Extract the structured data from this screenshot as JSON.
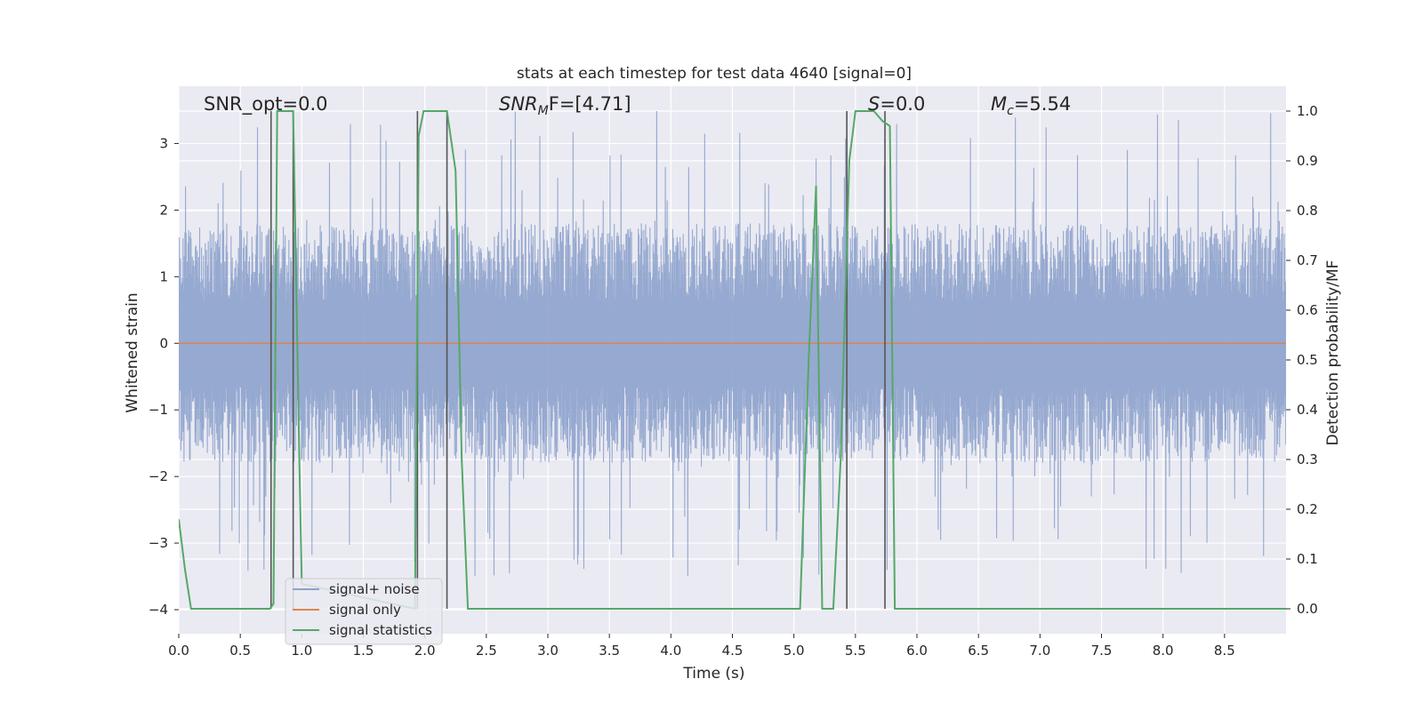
{
  "chart_data": {
    "type": "line",
    "title": "stats at each timestep for test data 4640 [signal=0]",
    "xlabel": "Time (s)",
    "ylabel_left": "Whitened strain",
    "ylabel_right": "Detection probability/MF",
    "xlim": [
      0.0,
      9.0
    ],
    "ylim_left": [
      -4.36,
      3.86
    ],
    "ylim_right": [
      -0.05,
      1.05
    ],
    "x_ticks": [
      "0.0",
      "0.5",
      "1.0",
      "1.5",
      "2.0",
      "2.5",
      "3.0",
      "3.5",
      "4.0",
      "4.5",
      "5.0",
      "5.5",
      "6.0",
      "6.5",
      "7.0",
      "7.5",
      "8.0",
      "8.5"
    ],
    "y_left_ticks": [
      "−4",
      "−3",
      "−2",
      "−1",
      "0",
      "1",
      "2",
      "3"
    ],
    "y_right_ticks": [
      "0.0",
      "0.1",
      "0.2",
      "0.3",
      "0.4",
      "0.5",
      "0.6",
      "0.7",
      "0.8",
      "0.9",
      "1.0"
    ],
    "grid": true,
    "annotations": [
      {
        "key": "snr_opt",
        "text": "SNR_opt=0.0"
      },
      {
        "key": "snr_mf",
        "base": "SNR",
        "sub": "M",
        "rest": "F=[4.71]"
      },
      {
        "key": "s",
        "base": "S",
        "rest": "=0.0"
      },
      {
        "key": "mc",
        "base": "M",
        "sub": "c",
        "rest": "=5.54"
      }
    ],
    "legend": {
      "placement": "lower-left",
      "entries": [
        "signal+ noise",
        "signal only",
        "signal statistics"
      ]
    },
    "colors": {
      "noise": "#8da2cc",
      "signal": "#dd8452",
      "stats": "#55a868",
      "vlines": "#555555",
      "background": "#eaeaf2",
      "grid": "#ffffff"
    },
    "series": [
      {
        "name": "signal+ noise",
        "axis": "left",
        "description_values": {
          "typical_amplitude": 1.8,
          "peak_amplitude": 3.5,
          "x_range": [
            0.0,
            9.0
          ]
        }
      },
      {
        "name": "signal only",
        "axis": "left",
        "x": [
          0.0,
          9.0
        ],
        "y": [
          0.0,
          0.0
        ]
      },
      {
        "name": "signal statistics",
        "axis": "right",
        "x": [
          0.0,
          0.05,
          0.1,
          0.74,
          0.77,
          0.8,
          0.93,
          0.98,
          1.0,
          1.92,
          1.95,
          1.99,
          2.18,
          2.25,
          2.3,
          2.35,
          5.05,
          5.12,
          5.18,
          5.23,
          5.32,
          5.38,
          5.45,
          5.5,
          5.65,
          5.72,
          5.78,
          5.82,
          5.85,
          6.0,
          9.0
        ],
        "y": [
          0.18,
          0.08,
          0.0,
          0.0,
          0.01,
          1.0,
          1.0,
          0.3,
          0.05,
          0.0,
          0.95,
          1.0,
          1.0,
          0.88,
          0.3,
          0.0,
          0.0,
          0.5,
          0.85,
          0.0,
          0.0,
          0.3,
          0.9,
          1.0,
          1.0,
          0.98,
          0.97,
          0.0,
          0.0,
          0.0,
          0.0
        ]
      }
    ],
    "vertical_markers_x": [
      0.75,
      0.93,
      1.94,
      2.18,
      5.43,
      5.74
    ]
  }
}
